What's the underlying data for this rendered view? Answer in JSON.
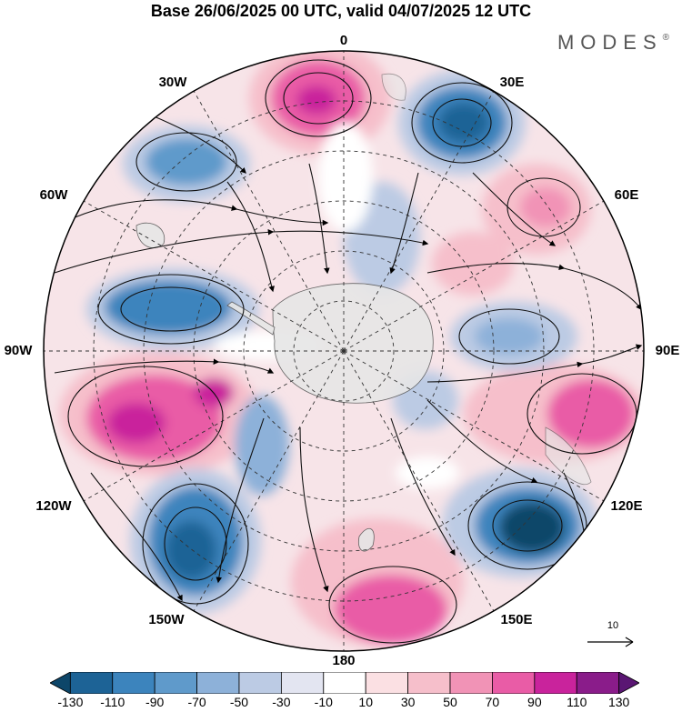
{
  "title": "Base 26/06/2025 00 UTC, valid 04/07/2025 12 UTC",
  "brand": "MODES",
  "brand_mark": "®",
  "longitude_labels": [
    {
      "key": "0",
      "text": "0"
    },
    {
      "key": "30E",
      "text": "30E"
    },
    {
      "key": "60E",
      "text": "60E"
    },
    {
      "key": "90E",
      "text": "90E"
    },
    {
      "key": "120E",
      "text": "120E"
    },
    {
      "key": "150E",
      "text": "150E"
    },
    {
      "key": "180",
      "text": "180"
    },
    {
      "key": "150W",
      "text": "150W"
    },
    {
      "key": "120W",
      "text": "120W"
    },
    {
      "key": "90W",
      "text": "90W"
    },
    {
      "key": "60W",
      "text": "60W"
    },
    {
      "key": "30W",
      "text": "30W"
    }
  ],
  "reference_vector": {
    "label": "10"
  },
  "colorbar": {
    "labels": [
      "-130",
      "-110",
      "-90",
      "-70",
      "-50",
      "-30",
      "-10",
      "10",
      "30",
      "50",
      "70",
      "90",
      "110",
      "130"
    ],
    "colors": [
      "#0d4669",
      "#1d6396",
      "#3c84bd",
      "#5f9acb",
      "#8db1d9",
      "#bccbe4",
      "#e3e5f1",
      "#ffffff",
      "#fbe0e3",
      "#f6bfcb",
      "#f193b6",
      "#e95ca6",
      "#c9239c",
      "#8a1c8a",
      "#5a1673"
    ]
  },
  "colors": {
    "land": "#e6e6e6",
    "outline": "#000000"
  }
}
